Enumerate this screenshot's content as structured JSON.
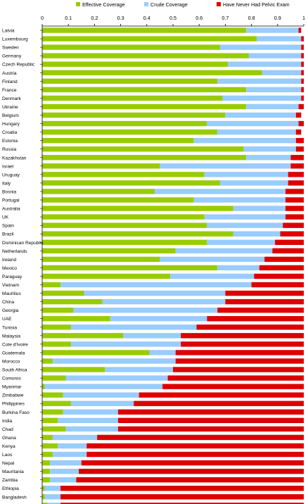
{
  "chart_data": {
    "type": "bar",
    "stacked": true,
    "orientation": "horizontal",
    "xlim": [
      0,
      1
    ],
    "xticks": [
      "0",
      "0.1",
      "0.2",
      "0.3",
      "0.4",
      "0.5",
      "0.6",
      "0.7",
      "0.8",
      "0.9",
      "1"
    ],
    "grid": false,
    "legend_position": "top",
    "categories": [
      "Latvia",
      "Luxembourg",
      "Sweden",
      "Germany",
      "Czech Republic",
      "Austria",
      "Finland",
      "France",
      "Denmark",
      "Ukraine",
      "Belgium",
      "Hungary",
      "Croatia",
      "Estonia",
      "Russia",
      "Kazakhstan",
      "Israel",
      "Uruguay",
      "Italy",
      "Bosnia",
      "Portugal",
      "Australia",
      "UK",
      "Spain",
      "Brazil",
      "Dominican Republic",
      "Netherlands",
      "Ireland",
      "Mexico",
      "Paraguay",
      "Vietnam",
      "Mauritius",
      "China",
      "Georgia",
      "UAE",
      "Tunisia",
      "Malaysia",
      "Cote d'Ivoire",
      "Guatemala",
      "Morocco",
      "South Africa",
      "Comoros",
      "Myanmar",
      "Zimbabwe",
      "Philippines",
      "Burkina Faso",
      "India",
      "Chad",
      "Ghana",
      "Kenya",
      "Laos",
      "Nepal",
      "Mauritania",
      "Zambia",
      "Ethiopia",
      "Bangladesh",
      "Malawi"
    ],
    "series": [
      {
        "name": "Effective Coverage",
        "color": "#99cc00",
        "values": [
          0.78,
          0.82,
          0.68,
          0.79,
          0.71,
          0.84,
          0.67,
          0.78,
          0.69,
          0.78,
          0.7,
          0.63,
          0.67,
          0.58,
          0.77,
          0.78,
          0.45,
          0.62,
          0.68,
          0.43,
          0.58,
          0.73,
          0.62,
          0.63,
          0.73,
          0.63,
          0.51,
          0.45,
          0.67,
          0.49,
          0.07,
          0.16,
          0.23,
          0.12,
          0.26,
          0.11,
          0.31,
          0.11,
          0.41,
          0.04,
          0.24,
          0.09,
          0.01,
          0.08,
          0.11,
          0.08,
          0.06,
          0.09,
          0.04,
          0.06,
          0.04,
          0.03,
          0.03,
          0.03,
          0.01,
          0.01,
          0.02
        ]
      },
      {
        "name": "Crude Coverage",
        "color": "#99ccff",
        "values": [
          0.2,
          0.17,
          0.31,
          0.2,
          0.28,
          0.15,
          0.32,
          0.21,
          0.3,
          0.2,
          0.27,
          0.35,
          0.3,
          0.39,
          0.2,
          0.17,
          0.5,
          0.32,
          0.26,
          0.5,
          0.35,
          0.2,
          0.31,
          0.29,
          0.18,
          0.26,
          0.37,
          0.4,
          0.16,
          0.32,
          0.73,
          0.54,
          0.47,
          0.55,
          0.37,
          0.48,
          0.22,
          0.42,
          0.1,
          0.47,
          0.26,
          0.39,
          0.45,
          0.29,
          0.24,
          0.21,
          0.23,
          0.2,
          0.17,
          0.11,
          0.13,
          0.12,
          0.11,
          0.1,
          0.06,
          0.06,
          0.05
        ]
      },
      {
        "name": "Have Never Had Pelvic Exam",
        "color": "#dd0000",
        "values": [
          0.01,
          0.01,
          0.01,
          0.01,
          0.01,
          0.01,
          0.01,
          0.01,
          0.01,
          0.02,
          0.02,
          0.02,
          0.02,
          0.03,
          0.03,
          0.05,
          0.05,
          0.06,
          0.06,
          0.07,
          0.07,
          0.07,
          0.07,
          0.08,
          0.09,
          0.11,
          0.12,
          0.15,
          0.17,
          0.19,
          0.2,
          0.3,
          0.3,
          0.33,
          0.37,
          0.41,
          0.47,
          0.47,
          0.49,
          0.49,
          0.5,
          0.52,
          0.54,
          0.63,
          0.65,
          0.71,
          0.71,
          0.71,
          0.79,
          0.83,
          0.83,
          0.85,
          0.86,
          0.87,
          0.93,
          0.93,
          0.93
        ]
      }
    ]
  }
}
